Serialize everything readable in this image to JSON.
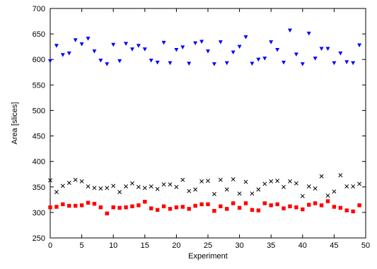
{
  "chart_data": {
    "type": "scatter",
    "title": "",
    "xlabel": "Experiment",
    "ylabel": "Area [slices]",
    "xlim": [
      0,
      50
    ],
    "ylim": [
      250,
      700
    ],
    "xticks": [
      0,
      5,
      10,
      15,
      20,
      25,
      30,
      35,
      40,
      45,
      50
    ],
    "yticks": [
      250,
      300,
      350,
      400,
      450,
      500,
      550,
      600,
      650,
      700
    ],
    "grid": false,
    "legend": "none",
    "series": [
      {
        "marker": "triangle-down",
        "color": "#0000ff",
        "x": [
          0,
          1,
          2,
          3,
          4,
          5,
          6,
          7,
          8,
          9,
          10,
          11,
          12,
          13,
          14,
          15,
          16,
          17,
          18,
          19,
          20,
          21,
          22,
          23,
          24,
          25,
          26,
          27,
          28,
          29,
          30,
          31,
          32,
          33,
          34,
          35,
          36,
          37,
          38,
          39,
          40,
          41,
          42,
          43,
          44,
          45,
          46,
          47,
          48,
          49
        ],
        "values": [
          597,
          627,
          609,
          612,
          638,
          630,
          641,
          616,
          598,
          591,
          629,
          597,
          631,
          620,
          627,
          620,
          598,
          594,
          633,
          593,
          619,
          624,
          592,
          632,
          635,
          616,
          591,
          634,
          593,
          614,
          625,
          644,
          592,
          600,
          602,
          634,
          619,
          594,
          657,
          610,
          591,
          651,
          602,
          621,
          621,
          593,
          612,
          595,
          593,
          628
        ]
      },
      {
        "marker": "cross",
        "color": "#000000",
        "x": [
          0,
          1,
          2,
          3,
          4,
          5,
          6,
          7,
          8,
          9,
          10,
          11,
          12,
          13,
          14,
          15,
          16,
          17,
          18,
          19,
          20,
          21,
          22,
          23,
          24,
          25,
          26,
          27,
          28,
          29,
          30,
          31,
          32,
          33,
          34,
          35,
          36,
          37,
          38,
          39,
          40,
          41,
          42,
          43,
          44,
          45,
          46,
          47,
          48,
          49
        ],
        "values": [
          363,
          340,
          352,
          358,
          364,
          361,
          351,
          348,
          347,
          348,
          352,
          340,
          351,
          357,
          350,
          348,
          351,
          346,
          355,
          355,
          350,
          364,
          342,
          345,
          361,
          362,
          336,
          364,
          345,
          365,
          337,
          360,
          337,
          345,
          356,
          361,
          362,
          350,
          361,
          357,
          332,
          351,
          347,
          371,
          333,
          341,
          373,
          351,
          351,
          356
        ]
      },
      {
        "marker": "square",
        "color": "#ff0000",
        "x": [
          0,
          1,
          2,
          3,
          4,
          5,
          6,
          7,
          8,
          9,
          10,
          11,
          12,
          13,
          14,
          15,
          16,
          17,
          18,
          19,
          20,
          21,
          22,
          23,
          24,
          25,
          26,
          27,
          28,
          29,
          30,
          31,
          32,
          33,
          34,
          35,
          36,
          37,
          38,
          39,
          40,
          41,
          42,
          43,
          44,
          45,
          46,
          47,
          48,
          49
        ],
        "values": [
          310,
          311,
          316,
          313,
          313,
          314,
          319,
          317,
          310,
          298,
          310,
          309,
          310,
          312,
          314,
          321,
          308,
          305,
          312,
          307,
          310,
          311,
          307,
          313,
          316,
          316,
          303,
          312,
          307,
          318,
          309,
          318,
          305,
          304,
          318,
          314,
          316,
          308,
          312,
          310,
          306,
          315,
          318,
          314,
          322,
          311,
          309,
          304,
          302,
          314
        ]
      }
    ]
  }
}
